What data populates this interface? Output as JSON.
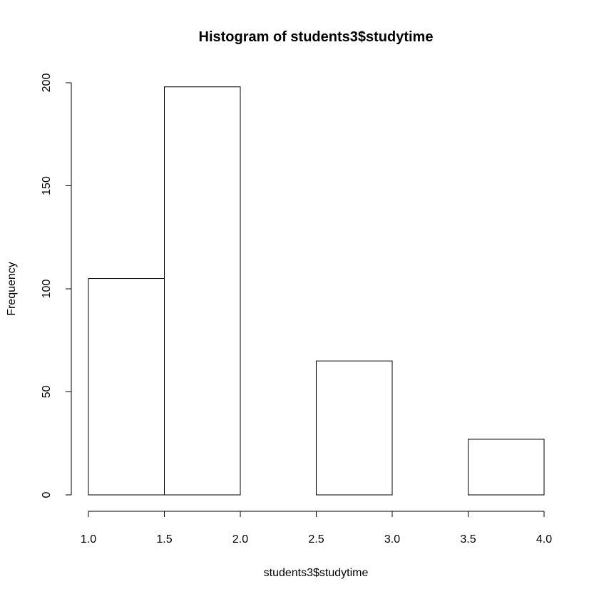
{
  "chart_data": {
    "type": "bar",
    "title": "Histogram of students3$studytime",
    "xlabel": "students3$studytime",
    "ylabel": "Frequency",
    "bins": [
      {
        "from": 1.0,
        "to": 1.5,
        "count": 105
      },
      {
        "from": 1.5,
        "to": 2.0,
        "count": 198
      },
      {
        "from": 2.0,
        "to": 2.5,
        "count": 0
      },
      {
        "from": 2.5,
        "to": 3.0,
        "count": 65
      },
      {
        "from": 3.0,
        "to": 3.5,
        "count": 0
      },
      {
        "from": 3.5,
        "to": 4.0,
        "count": 27
      }
    ],
    "xlim": [
      1.0,
      4.0
    ],
    "ylim": [
      0,
      200
    ],
    "x_ticks": [
      "1.0",
      "1.5",
      "2.0",
      "2.5",
      "3.0",
      "3.5",
      "4.0"
    ],
    "y_ticks": [
      "0",
      "50",
      "100",
      "150",
      "200"
    ],
    "grid": false,
    "bar_fill": "#ffffff",
    "bar_stroke": "#000000"
  }
}
